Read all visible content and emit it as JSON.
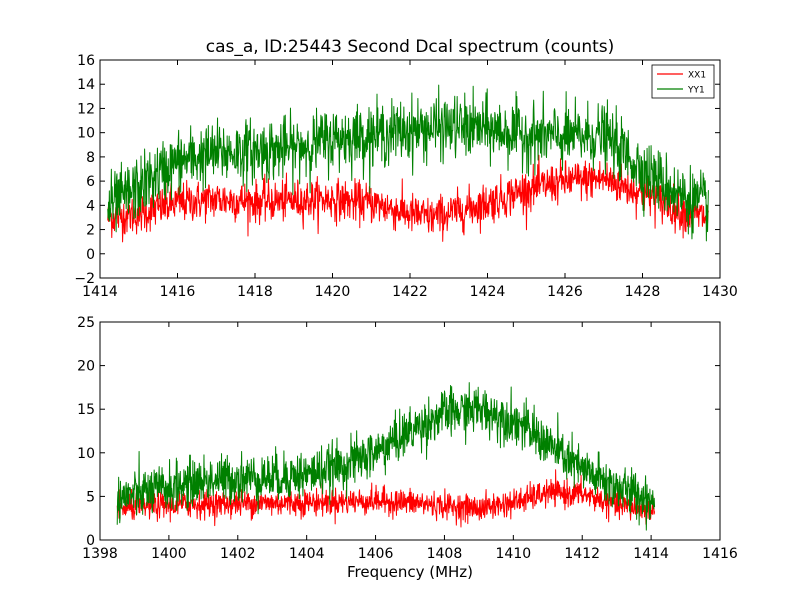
{
  "chart_data": [
    {
      "type": "line",
      "title": "cas_a, ID:25443 Second Dcal spectrum (counts)",
      "xlabel": "",
      "ylabel": "",
      "xlim": [
        1414,
        1430
      ],
      "ylim": [
        -2,
        16
      ],
      "x_ticks": [
        1414,
        1416,
        1418,
        1420,
        1422,
        1424,
        1426,
        1428,
        1430
      ],
      "y_ticks": [
        -2,
        0,
        2,
        4,
        6,
        8,
        10,
        12,
        14,
        16
      ],
      "legend_position": "top-right",
      "x_range": [
        1414.2,
        1429.7
      ],
      "series": [
        {
          "name": "XX1",
          "color": "#ff0000",
          "noise_amplitude": 1.1,
          "envelope_x": [
            1414.2,
            1415.0,
            1416.0,
            1417.0,
            1418.0,
            1419.0,
            1420.0,
            1420.5,
            1421.0,
            1422.0,
            1422.5,
            1423.0,
            1424.0,
            1425.0,
            1426.0,
            1427.0,
            1428.0,
            1429.0,
            1429.7
          ],
          "envelope_y": [
            3.0,
            3.3,
            4.2,
            4.5,
            4.3,
            4.4,
            4.5,
            4.3,
            4.2,
            3.3,
            3.0,
            3.3,
            4.2,
            5.3,
            6.0,
            6.2,
            5.0,
            3.5,
            3.0
          ]
        },
        {
          "name": "YY1",
          "color": "#008000",
          "noise_amplitude": 1.7,
          "envelope_x": [
            1414.2,
            1415.0,
            1416.0,
            1417.0,
            1418.0,
            1419.0,
            1420.0,
            1421.0,
            1422.0,
            1423.0,
            1424.0,
            1425.0,
            1426.0,
            1427.0,
            1428.0,
            1429.0,
            1429.7
          ],
          "envelope_y": [
            3.8,
            5.5,
            7.6,
            8.3,
            8.5,
            8.7,
            9.5,
            9.8,
            10.2,
            10.5,
            10.3,
            9.8,
            9.6,
            9.8,
            7.0,
            4.8,
            4.0
          ]
        }
      ]
    },
    {
      "type": "line",
      "title": "",
      "xlabel": "Frequency (MHz)",
      "ylabel": "",
      "xlim": [
        1398,
        1416
      ],
      "ylim": [
        0,
        25
      ],
      "x_ticks": [
        1398,
        1400,
        1402,
        1404,
        1406,
        1408,
        1410,
        1412,
        1414,
        1416
      ],
      "y_ticks": [
        0,
        5,
        10,
        15,
        20,
        25
      ],
      "x_range": [
        1398.5,
        1414.1
      ],
      "series": [
        {
          "color": "#ff0000",
          "noise_amplitude": 1.0,
          "envelope_x": [
            1398.5,
            1400.0,
            1402.0,
            1404.0,
            1406.0,
            1407.0,
            1408.0,
            1409.0,
            1410.0,
            1411.0,
            1412.0,
            1413.0,
            1414.1
          ],
          "envelope_y": [
            3.6,
            4.0,
            4.2,
            4.3,
            4.5,
            4.3,
            3.9,
            3.6,
            4.3,
            5.4,
            5.3,
            4.0,
            3.4
          ]
        },
        {
          "color": "#008000",
          "noise_amplitude": 1.8,
          "envelope_x": [
            1398.5,
            1400.0,
            1401.0,
            1402.0,
            1403.0,
            1404.0,
            1405.0,
            1406.0,
            1407.0,
            1408.0,
            1409.0,
            1410.0,
            1411.0,
            1412.0,
            1413.0,
            1414.1
          ],
          "envelope_y": [
            4.8,
            6.0,
            6.8,
            7.1,
            7.2,
            7.5,
            8.5,
            10.0,
            12.5,
            14.5,
            15.0,
            13.8,
            11.0,
            8.0,
            6.0,
            4.5
          ]
        }
      ]
    }
  ]
}
